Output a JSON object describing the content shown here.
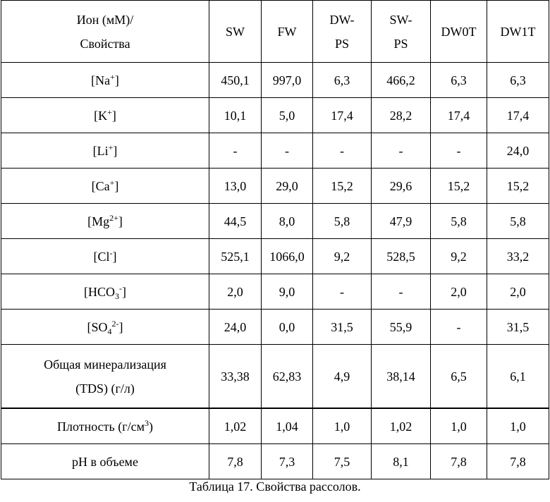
{
  "table": {
    "header": [
      [
        "Ион (мМ)/",
        "Свойства"
      ],
      [
        "SW"
      ],
      [
        "FW"
      ],
      [
        "DW-",
        "PS"
      ],
      [
        "SW-",
        "PS"
      ],
      [
        "DW0T"
      ],
      [
        "DW1T"
      ]
    ],
    "rows": [
      {
        "label": [
          [
            {
              "t": "[Na"
            },
            {
              "sup": "+"
            },
            {
              "t": "]"
            }
          ]
        ],
        "values": [
          "450,1",
          "997,0",
          "6,3",
          "466,2",
          "6,3",
          "6,3"
        ]
      },
      {
        "label": [
          [
            {
              "t": "[K"
            },
            {
              "sup": "+"
            },
            {
              "t": "]"
            }
          ]
        ],
        "values": [
          "10,1",
          "5,0",
          "17,4",
          "28,2",
          "17,4",
          "17,4"
        ]
      },
      {
        "label": [
          [
            {
              "t": "[Li"
            },
            {
              "sup": "+"
            },
            {
              "t": "]"
            }
          ]
        ],
        "values": [
          "-",
          "-",
          "-",
          "-",
          "-",
          "24,0"
        ]
      },
      {
        "label": [
          [
            {
              "t": "[Ca"
            },
            {
              "sup": "+"
            },
            {
              "t": "]"
            }
          ]
        ],
        "values": [
          "13,0",
          "29,0",
          "15,2",
          "29,6",
          "15,2",
          "15,2"
        ]
      },
      {
        "label": [
          [
            {
              "t": "[Mg"
            },
            {
              "sup": "2+"
            },
            {
              "t": "]"
            }
          ]
        ],
        "values": [
          "44,5",
          "8,0",
          "5,8",
          "47,9",
          "5,8",
          "5,8"
        ]
      },
      {
        "label": [
          [
            {
              "t": "[Cl"
            },
            {
              "sup": "-"
            },
            {
              "t": "]"
            }
          ]
        ],
        "values": [
          "525,1",
          "1066,0",
          "9,2",
          "528,5",
          "9,2",
          "33,2"
        ]
      },
      {
        "label": [
          [
            {
              "t": "[HCO"
            },
            {
              "sub": "3"
            },
            {
              "sup": "-"
            },
            {
              "t": "]"
            }
          ]
        ],
        "values": [
          "2,0",
          "9,0",
          "-",
          "-",
          "2,0",
          "2,0"
        ]
      },
      {
        "label": [
          [
            {
              "t": "[SO"
            },
            {
              "sub": "4"
            },
            {
              "sup": "2-"
            },
            {
              "t": "]"
            }
          ]
        ],
        "values": [
          "24,0",
          "0,0",
          "31,5",
          "55,9",
          "-",
          "31,5"
        ]
      },
      {
        "label": [
          [
            {
              "t": "Общая минерализация"
            }
          ],
          [
            {
              "t": "(TDS) (г/л)"
            }
          ]
        ],
        "values": [
          "33,38",
          "62,83",
          "4,9",
          "38,14",
          "6,5",
          "6,1"
        ]
      },
      {
        "label": [
          [
            {
              "t": "Плотность (г/см"
            },
            {
              "sup": "3"
            },
            {
              "t": ")"
            }
          ]
        ],
        "values": [
          "1,02",
          "1,04",
          "1,0",
          "1,02",
          "1,0",
          "1,0"
        ]
      },
      {
        "label": [
          [
            {
              "t": "pH в объеме"
            }
          ]
        ],
        "values": [
          "7,8",
          "7,3",
          "7,5",
          "8,1",
          "7,8",
          "7,8"
        ]
      }
    ]
  },
  "caption": "Таблица 17. Свойства рассолов."
}
